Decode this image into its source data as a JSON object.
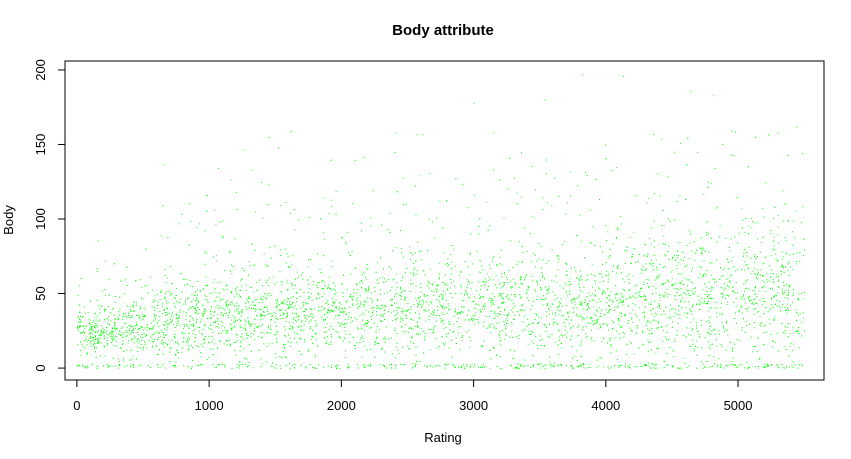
{
  "chart_data": {
    "type": "scatter",
    "title": "Body attribute",
    "xlabel": "Rating",
    "ylabel": "Body",
    "xlim": [
      -90,
      5650
    ],
    "ylim": [
      -8,
      206
    ],
    "x_ticks": [
      0,
      1000,
      2000,
      3000,
      4000,
      5000
    ],
    "y_ticks": [
      0,
      50,
      100,
      150,
      200
    ],
    "grid": false,
    "legend": "none",
    "point_color": "#00ff00",
    "n_points": 5500,
    "density_profile": [
      {
        "x": 0,
        "y_center": 22,
        "y_spread": 12
      },
      {
        "x": 300,
        "y_center": 25,
        "y_spread": 15
      },
      {
        "x": 600,
        "y_center": 30,
        "y_spread": 20
      },
      {
        "x": 1000,
        "y_center": 33,
        "y_spread": 22
      },
      {
        "x": 2000,
        "y_center": 37,
        "y_spread": 24
      },
      {
        "x": 3000,
        "y_center": 40,
        "y_spread": 28
      },
      {
        "x": 4000,
        "y_center": 42,
        "y_spread": 32
      },
      {
        "x": 5000,
        "y_center": 45,
        "y_spread": 36
      },
      {
        "x": 5500,
        "y_center": 45,
        "y_spread": 38
      }
    ],
    "notable_points": [
      {
        "x": 3820,
        "y": 197
      },
      {
        "x": 4130,
        "y": 196
      },
      {
        "x": 4640,
        "y": 186
      },
      {
        "x": 4810,
        "y": 183
      },
      {
        "x": 3540,
        "y": 180
      },
      {
        "x": 3000,
        "y": 178
      },
      {
        "x": 2410,
        "y": 158
      },
      {
        "x": 1450,
        "y": 155
      },
      {
        "x": 5440,
        "y": 162
      },
      {
        "x": 3150,
        "y": 158
      }
    ]
  }
}
